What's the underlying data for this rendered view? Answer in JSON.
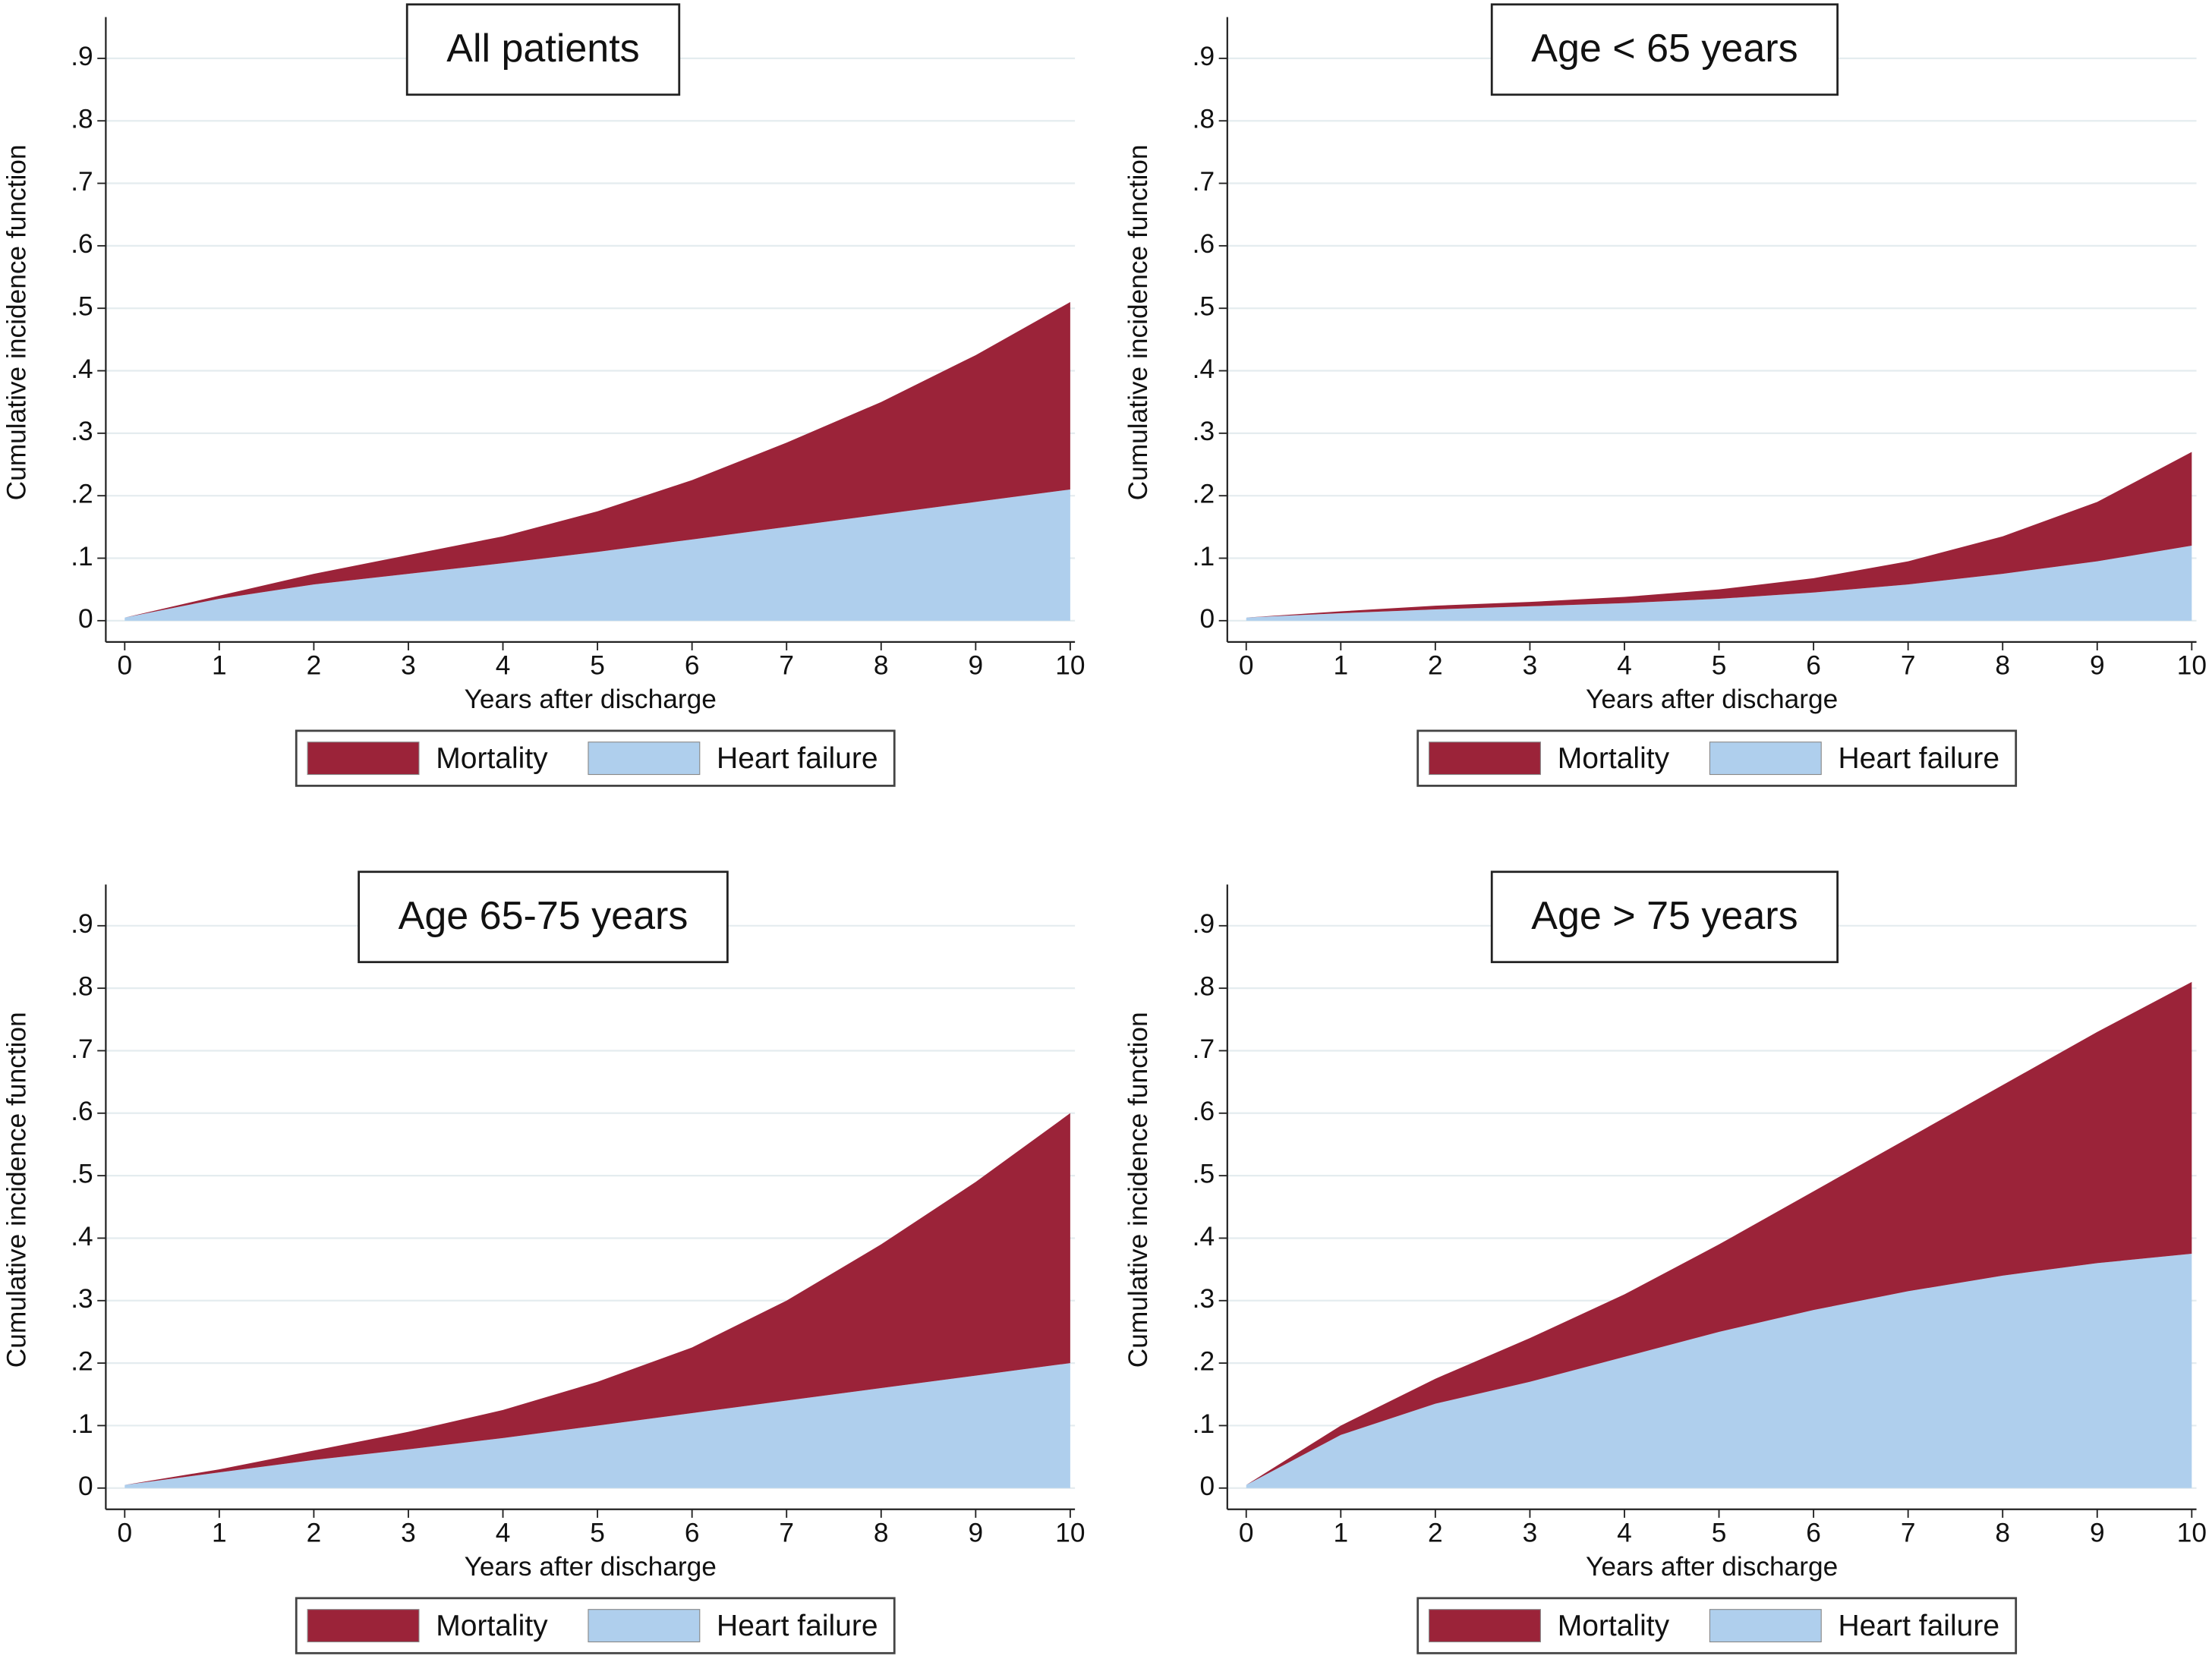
{
  "chart_data": [
    {
      "type": "area",
      "stacked": true,
      "title": "All patients",
      "x_label": "Years after discharge",
      "y_label": "Cumulative incidence function",
      "x": [
        0,
        1,
        2,
        3,
        4,
        5,
        6,
        7,
        8,
        9,
        10
      ],
      "series": [
        {
          "name": "Mortality",
          "color": "#9b2339",
          "values": [
            0,
            0.005,
            0.017,
            0.03,
            0.043,
            0.065,
            0.095,
            0.135,
            0.18,
            0.235,
            0.3
          ]
        },
        {
          "name": "Heart failure",
          "color": "#afcfed",
          "values": [
            0.005,
            0.035,
            0.058,
            0.075,
            0.092,
            0.11,
            0.13,
            0.15,
            0.17,
            0.19,
            0.21
          ]
        }
      ],
      "xlim": [
        -0.2,
        10.05
      ],
      "ylim": [
        -0.034,
        0.966
      ],
      "xticks": [
        0,
        1,
        2,
        3,
        4,
        5,
        6,
        7,
        8,
        9,
        10
      ],
      "yticks": [
        0,
        {
          "value": 0.1,
          "label": ".1"
        },
        {
          "value": 0.2,
          "label": ".2"
        },
        {
          "value": 0.3,
          "label": ".3"
        },
        {
          "value": 0.4,
          "label": ".4"
        },
        {
          "value": 0.5,
          "label": ".5"
        },
        {
          "value": 0.6,
          "label": ".6"
        },
        {
          "value": 0.7,
          "label": ".7"
        },
        {
          "value": 0.8,
          "label": ".8"
        },
        {
          "value": 0.9,
          "label": ".9"
        }
      ],
      "grid": true
    },
    {
      "type": "area",
      "stacked": true,
      "title": "Age < 65 years",
      "x_label": "Years after discharge",
      "y_label": "Cumulative incidence function",
      "x": [
        0,
        1,
        2,
        3,
        4,
        5,
        6,
        7,
        8,
        9,
        10
      ],
      "series": [
        {
          "name": "Mortality",
          "color": "#9b2339",
          "values": [
            0,
            0.003,
            0.006,
            0.007,
            0.01,
            0.015,
            0.023,
            0.037,
            0.06,
            0.095,
            0.15
          ]
        },
        {
          "name": "Heart failure",
          "color": "#afcfed",
          "values": [
            0.005,
            0.012,
            0.018,
            0.023,
            0.028,
            0.035,
            0.045,
            0.058,
            0.075,
            0.095,
            0.12
          ]
        }
      ],
      "xlim": [
        -0.2,
        10.05
      ],
      "ylim": [
        -0.034,
        0.966
      ],
      "xticks": [
        0,
        1,
        2,
        3,
        4,
        5,
        6,
        7,
        8,
        9,
        10
      ],
      "yticks": [
        0,
        {
          "value": 0.1,
          "label": ".1"
        },
        {
          "value": 0.2,
          "label": ".2"
        },
        {
          "value": 0.3,
          "label": ".3"
        },
        {
          "value": 0.4,
          "label": ".4"
        },
        {
          "value": 0.5,
          "label": ".5"
        },
        {
          "value": 0.6,
          "label": ".6"
        },
        {
          "value": 0.7,
          "label": ".7"
        },
        {
          "value": 0.8,
          "label": ".8"
        },
        {
          "value": 0.9,
          "label": ".9"
        }
      ],
      "grid": true
    },
    {
      "type": "area",
      "stacked": true,
      "title": "Age 65-75 years",
      "x_label": "Years after discharge",
      "y_label": "Cumulative incidence function",
      "x": [
        0,
        1,
        2,
        3,
        4,
        5,
        6,
        7,
        8,
        9,
        10
      ],
      "series": [
        {
          "name": "Mortality",
          "color": "#9b2339",
          "values": [
            0,
            0.005,
            0.015,
            0.028,
            0.045,
            0.07,
            0.105,
            0.16,
            0.23,
            0.31,
            0.4
          ]
        },
        {
          "name": "Heart failure",
          "color": "#afcfed",
          "values": [
            0.005,
            0.025,
            0.045,
            0.062,
            0.08,
            0.1,
            0.12,
            0.14,
            0.16,
            0.18,
            0.2
          ]
        }
      ],
      "xlim": [
        -0.2,
        10.05
      ],
      "ylim": [
        -0.034,
        0.966
      ],
      "xticks": [
        0,
        1,
        2,
        3,
        4,
        5,
        6,
        7,
        8,
        9,
        10
      ],
      "yticks": [
        0,
        {
          "value": 0.1,
          "label": ".1"
        },
        {
          "value": 0.2,
          "label": ".2"
        },
        {
          "value": 0.3,
          "label": ".3"
        },
        {
          "value": 0.4,
          "label": ".4"
        },
        {
          "value": 0.5,
          "label": ".5"
        },
        {
          "value": 0.6,
          "label": ".6"
        },
        {
          "value": 0.7,
          "label": ".7"
        },
        {
          "value": 0.8,
          "label": ".8"
        },
        {
          "value": 0.9,
          "label": ".9"
        }
      ],
      "grid": true
    },
    {
      "type": "area",
      "stacked": true,
      "title": "Age > 75 years",
      "x_label": "Years after discharge",
      "y_label": "Cumulative incidence function",
      "x": [
        0,
        1,
        2,
        3,
        4,
        5,
        6,
        7,
        8,
        9,
        10
      ],
      "series": [
        {
          "name": "Mortality",
          "color": "#9b2339",
          "values": [
            0,
            0.015,
            0.04,
            0.07,
            0.1,
            0.14,
            0.19,
            0.245,
            0.305,
            0.37,
            0.435
          ]
        },
        {
          "name": "Heart failure",
          "color": "#afcfed",
          "values": [
            0.005,
            0.085,
            0.135,
            0.17,
            0.21,
            0.25,
            0.285,
            0.315,
            0.34,
            0.36,
            0.375
          ]
        }
      ],
      "xlim": [
        -0.2,
        10.05
      ],
      "ylim": [
        -0.034,
        0.966
      ],
      "xticks": [
        0,
        1,
        2,
        3,
        4,
        5,
        6,
        7,
        8,
        9,
        10
      ],
      "yticks": [
        0,
        {
          "value": 0.1,
          "label": ".1"
        },
        {
          "value": 0.2,
          "label": ".2"
        },
        {
          "value": 0.3,
          "label": ".3"
        },
        {
          "value": 0.4,
          "label": ".4"
        },
        {
          "value": 0.5,
          "label": ".5"
        },
        {
          "value": 0.6,
          "label": ".6"
        },
        {
          "value": 0.7,
          "label": ".7"
        },
        {
          "value": 0.8,
          "label": ".8"
        },
        {
          "value": 0.9,
          "label": ".9"
        }
      ],
      "grid": true
    }
  ]
}
